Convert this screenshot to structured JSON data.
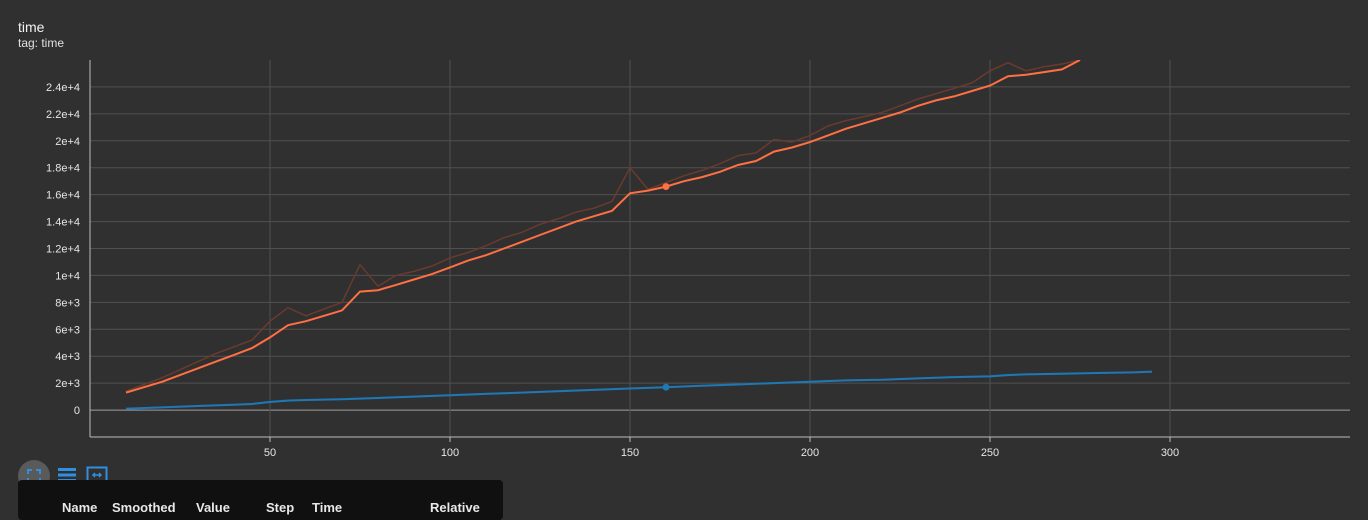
{
  "card": {
    "title": "time",
    "tag": "tag: time"
  },
  "colors": {
    "background": "#303030",
    "grid": "#505050",
    "axis": "#bdbdbd",
    "text": "#e6e6e6",
    "orange": "#ff7043",
    "orange_raw": "#6b3a2e",
    "blue": "#1f77b4",
    "blue_raw": "#24425c"
  },
  "chart_data": {
    "type": "line",
    "xlim": [
      0,
      350
    ],
    "ylim": [
      -2000,
      26000
    ],
    "x_ticks": [
      "50",
      "100",
      "150",
      "200",
      "250",
      "300"
    ],
    "x_tick_values": [
      50,
      100,
      150,
      200,
      250,
      300
    ],
    "y_ticks": [
      "0",
      "2e+3",
      "4e+3",
      "6e+3",
      "8e+3",
      "1e+4",
      "1.2e+4",
      "1.4e+4",
      "1.6e+4",
      "1.8e+4",
      "2e+4",
      "2.2e+4",
      "2.4e+4"
    ],
    "y_tick_values": [
      0,
      2000,
      4000,
      6000,
      8000,
      10000,
      12000,
      14000,
      16000,
      18000,
      20000,
      22000,
      24000
    ],
    "grid": true,
    "series": [
      {
        "color": "#ff7043",
        "raw_color": "#6b3a2e",
        "x": [
          10,
          15,
          20,
          25,
          30,
          35,
          40,
          45,
          50,
          55,
          60,
          65,
          70,
          75,
          80,
          85,
          90,
          95,
          100,
          105,
          110,
          115,
          120,
          125,
          130,
          135,
          140,
          145,
          150,
          155,
          160,
          165,
          170,
          175,
          180,
          185,
          190,
          195,
          200,
          205,
          210,
          215,
          220,
          225,
          230,
          235,
          240,
          245,
          250,
          255,
          260,
          265,
          270,
          275
        ],
        "smoothed": [
          1300,
          1700,
          2100,
          2600,
          3100,
          3600,
          4100,
          4600,
          5400,
          6300,
          6600,
          7000,
          7400,
          8800,
          8900,
          9300,
          9700,
          10100,
          10600,
          11100,
          11500,
          12000,
          12500,
          13000,
          13500,
          14000,
          14400,
          14800,
          16100,
          16300,
          16600,
          17000,
          17300,
          17700,
          18200,
          18500,
          19200,
          19500,
          19900,
          20400,
          20900,
          21300,
          21700,
          22100,
          22600,
          23000,
          23300,
          23700,
          24100,
          24800,
          24900,
          25100,
          25300,
          26000
        ],
        "raw": [
          1400,
          1900,
          2400,
          3000,
          3600,
          4200,
          4700,
          5200,
          6600,
          7600,
          7000,
          7500,
          8000,
          10800,
          9200,
          10000,
          10300,
          10700,
          11300,
          11700,
          12200,
          12800,
          13200,
          13800,
          14200,
          14700,
          15000,
          15500,
          18000,
          16400,
          16900,
          17400,
          17800,
          18300,
          18900,
          19100,
          20100,
          19900,
          20400,
          21100,
          21500,
          21800,
          22100,
          22600,
          23100,
          23500,
          23900,
          24300,
          25200,
          25800,
          25200,
          25500,
          25700,
          26000
        ],
        "highlight": {
          "x": 160,
          "y": 16600
        }
      },
      {
        "color": "#1f77b4",
        "raw_color": "#24425c",
        "x": [
          10,
          20,
          30,
          40,
          45,
          50,
          55,
          60,
          70,
          80,
          90,
          100,
          110,
          120,
          130,
          140,
          150,
          160,
          170,
          180,
          190,
          200,
          210,
          220,
          230,
          240,
          250,
          255,
          260,
          270,
          280,
          290,
          295
        ],
        "smoothed": [
          100,
          200,
          300,
          400,
          450,
          600,
          700,
          750,
          800,
          900,
          1000,
          1100,
          1200,
          1300,
          1400,
          1500,
          1600,
          1700,
          1800,
          1900,
          2000,
          2100,
          2200,
          2250,
          2350,
          2450,
          2500,
          2600,
          2650,
          2700,
          2750,
          2800,
          2850
        ],
        "raw": [
          120,
          220,
          330,
          420,
          480,
          650,
          750,
          780,
          830,
          930,
          1030,
          1130,
          1230,
          1330,
          1430,
          1530,
          1630,
          1730,
          1830,
          1930,
          2030,
          2150,
          2230,
          2280,
          2380,
          2480,
          2550,
          2650,
          2680,
          2730,
          2780,
          2830,
          2880
        ],
        "highlight": {
          "x": 160,
          "y": 1700
        }
      }
    ]
  },
  "table_header": [
    "Name",
    "Smoothed",
    "Value",
    "Step",
    "Time",
    "Relative"
  ]
}
